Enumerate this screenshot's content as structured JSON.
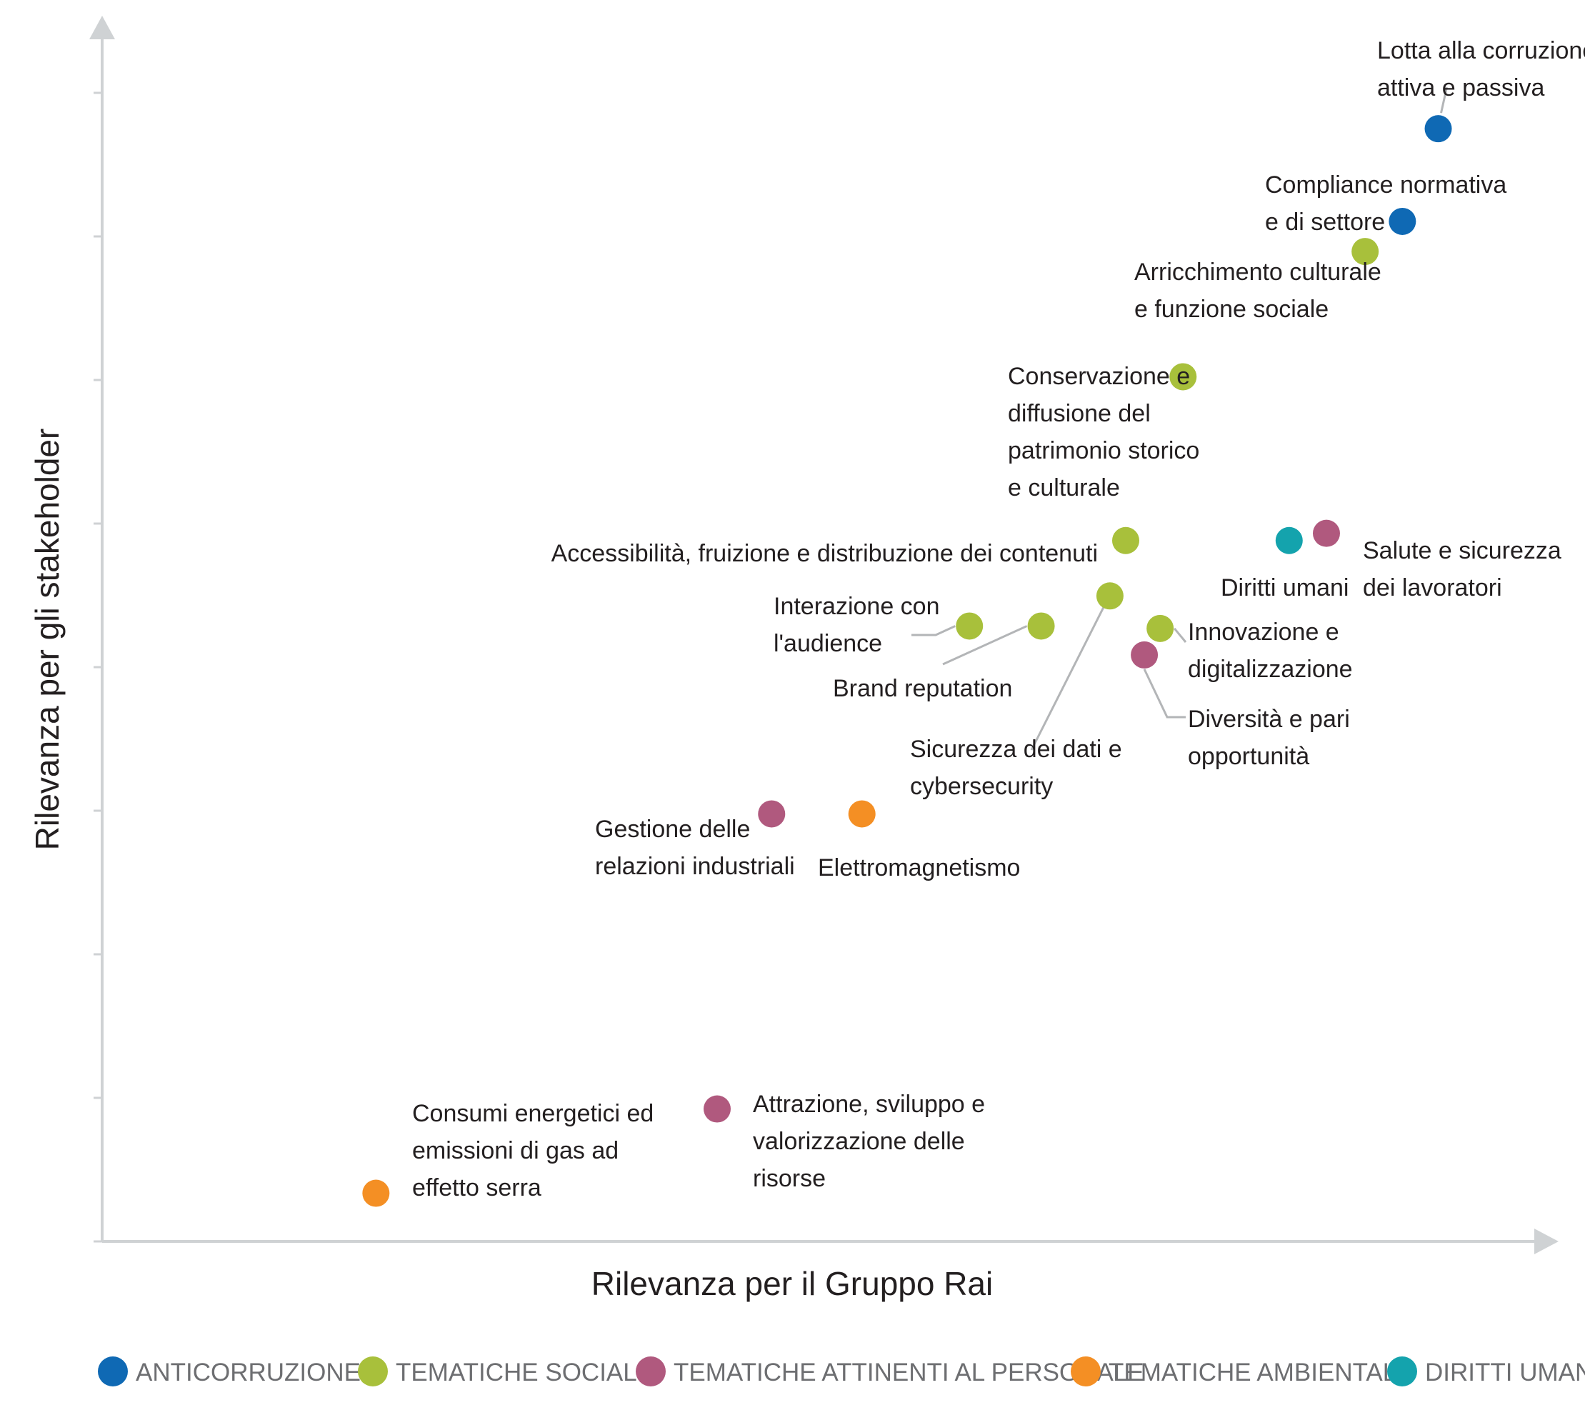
{
  "chart_data": {
    "type": "scatter",
    "xlabel": "Rilevanza per il Gruppo Rai",
    "ylabel": "Rilevanza per gli stakeholder",
    "xlim": [
      0,
      100
    ],
    "ylim": [
      0,
      100
    ],
    "grid": false,
    "legend_position": "bottom",
    "categories": [
      {
        "id": "anticorruzione",
        "name": "ANTICORRUZIONE",
        "color": "#0f69b4"
      },
      {
        "id": "sociali",
        "name": "TEMATICHE SOCIALI",
        "color": "#a8c03b"
      },
      {
        "id": "personale",
        "name": "TEMATICHE ATTINENTI AL PERSONALE",
        "color": "#b0597e"
      },
      {
        "id": "ambientali",
        "name": "TEMATICHE AMBIENTALI",
        "color": "#f48f24"
      },
      {
        "id": "diritti",
        "name": "DIRITTI UMANI",
        "color": "#14a3ad"
      }
    ],
    "points": [
      {
        "category": "anticorruzione",
        "label": [
          "Lotta alla corruzione",
          "attiva e passiva"
        ],
        "x": 93.2,
        "y": 92.4
      },
      {
        "category": "anticorruzione",
        "label": [
          "Compliance normativa",
          "e di settore"
        ],
        "x": 90.7,
        "y": 84.7
      },
      {
        "category": "sociali",
        "label": [
          "Arricchimento culturale",
          "e funzione sociale"
        ],
        "x": 88.1,
        "y": 82.2
      },
      {
        "category": "sociali",
        "label": [
          "Conservazione e",
          "diffusione del",
          "patrimonio storico",
          "e culturale"
        ],
        "x": 75.4,
        "y": 71.8
      },
      {
        "category": "sociali",
        "label": [
          "Accessibilità, fruizione e distribuzione dei contenuti"
        ],
        "x": 71.4,
        "y": 58.2
      },
      {
        "category": "diritti",
        "label": [
          "Diritti umani"
        ],
        "x": 82.8,
        "y": 58.2
      },
      {
        "category": "personale",
        "label": [
          "Salute e sicurezza",
          "dei lavoratori"
        ],
        "x": 85.4,
        "y": 58.8
      },
      {
        "category": "sociali",
        "label": [
          "Sicurezza dei dati e",
          "cybersecurity"
        ],
        "x": 70.3,
        "y": 53.6
      },
      {
        "category": "sociali",
        "label": [
          "Interazione con",
          "l'audience"
        ],
        "x": 60.5,
        "y": 51.1
      },
      {
        "category": "sociali",
        "label": [
          "Brand reputation"
        ],
        "x": 65.5,
        "y": 51.1
      },
      {
        "category": "sociali",
        "label": [
          "Innovazione e",
          "digitalizzazione"
        ],
        "x": 73.8,
        "y": 50.9
      },
      {
        "category": "personale",
        "label": [
          "Diversità e pari",
          "opportunità"
        ],
        "x": 72.7,
        "y": 48.7
      },
      {
        "category": "personale",
        "label": [
          "Gestione delle",
          "relazioni industriali"
        ],
        "x": 46.7,
        "y": 35.5
      },
      {
        "category": "ambientali",
        "label": [
          "Elettromagnetismo"
        ],
        "x": 53.0,
        "y": 35.5
      },
      {
        "category": "personale",
        "label": [
          "Attrazione, sviluppo e",
          "valorizzazione delle",
          "risorse"
        ],
        "x": 42.9,
        "y": 11.0
      },
      {
        "category": "ambientali",
        "label": [
          "Consumi energetici ed",
          "emissioni di gas ad",
          "effetto serra"
        ],
        "x": 19.1,
        "y": 4.0
      }
    ]
  }
}
